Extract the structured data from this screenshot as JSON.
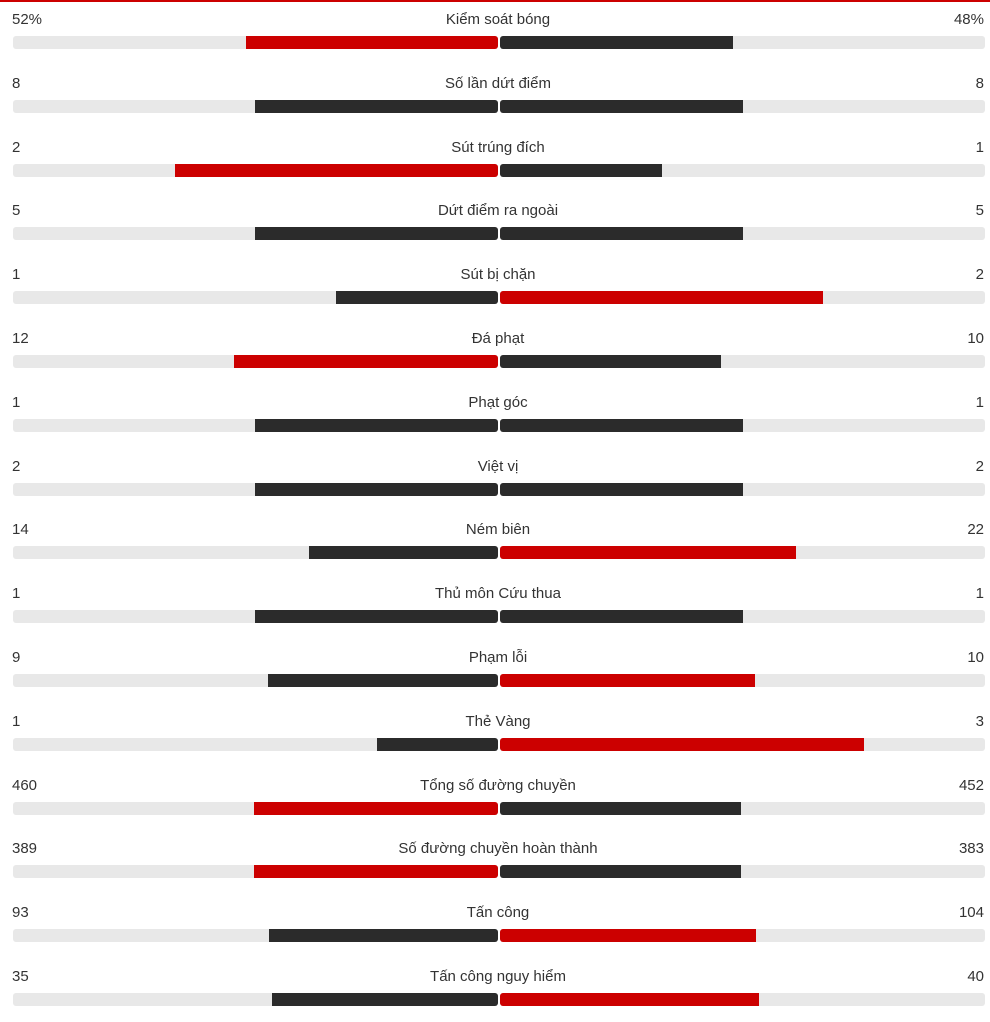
{
  "colors": {
    "winner": "#cc0000",
    "loser": "#2b2b2b",
    "track": "#e8e8e8",
    "accent_line": "#cc0000"
  },
  "stats": [
    {
      "label": "Kiểm soát bóng",
      "home_text": "52%",
      "away_text": "48%",
      "home_share": 0.52,
      "away_share": 0.48,
      "home_color": "winner",
      "away_color": "loser"
    },
    {
      "label": "Số lần dứt điểm",
      "home_text": "8",
      "away_text": "8",
      "home_share": 0.5,
      "away_share": 0.5,
      "home_color": "loser",
      "away_color": "loser"
    },
    {
      "label": "Sút trúng đích",
      "home_text": "2",
      "away_text": "1",
      "home_share": 0.667,
      "away_share": 0.333,
      "home_color": "winner",
      "away_color": "loser"
    },
    {
      "label": "Dứt điểm ra ngoài",
      "home_text": "5",
      "away_text": "5",
      "home_share": 0.5,
      "away_share": 0.5,
      "home_color": "loser",
      "away_color": "loser"
    },
    {
      "label": "Sút bị chặn",
      "home_text": "1",
      "away_text": "2",
      "home_share": 0.333,
      "away_share": 0.667,
      "home_color": "loser",
      "away_color": "winner"
    },
    {
      "label": "Đá phạt",
      "home_text": "12",
      "away_text": "10",
      "home_share": 0.545,
      "away_share": 0.455,
      "home_color": "winner",
      "away_color": "loser"
    },
    {
      "label": "Phạt góc",
      "home_text": "1",
      "away_text": "1",
      "home_share": 0.5,
      "away_share": 0.5,
      "home_color": "loser",
      "away_color": "loser"
    },
    {
      "label": "Việt vị",
      "home_text": "2",
      "away_text": "2",
      "home_share": 0.5,
      "away_share": 0.5,
      "home_color": "loser",
      "away_color": "loser"
    },
    {
      "label": "Ném biên",
      "home_text": "14",
      "away_text": "22",
      "home_share": 0.389,
      "away_share": 0.611,
      "home_color": "loser",
      "away_color": "winner"
    },
    {
      "label": "Thủ môn Cứu thua",
      "home_text": "1",
      "away_text": "1",
      "home_share": 0.5,
      "away_share": 0.5,
      "home_color": "loser",
      "away_color": "loser"
    },
    {
      "label": "Phạm lỗi",
      "home_text": "9",
      "away_text": "10",
      "home_share": 0.474,
      "away_share": 0.526,
      "home_color": "loser",
      "away_color": "winner"
    },
    {
      "label": "Thẻ Vàng",
      "home_text": "1",
      "away_text": "3",
      "home_share": 0.25,
      "away_share": 0.75,
      "home_color": "loser",
      "away_color": "winner"
    },
    {
      "label": "Tổng số đường chuyền",
      "home_text": "460",
      "away_text": "452",
      "home_share": 0.504,
      "away_share": 0.496,
      "home_color": "winner",
      "away_color": "loser"
    },
    {
      "label": "Số đường chuyền hoàn thành",
      "home_text": "389",
      "away_text": "383",
      "home_share": 0.504,
      "away_share": 0.496,
      "home_color": "winner",
      "away_color": "loser"
    },
    {
      "label": "Tấn công",
      "home_text": "93",
      "away_text": "104",
      "home_share": 0.472,
      "away_share": 0.528,
      "home_color": "loser",
      "away_color": "winner"
    },
    {
      "label": "Tấn công nguy hiểm",
      "home_text": "35",
      "away_text": "40",
      "home_share": 0.467,
      "away_share": 0.533,
      "home_color": "loser",
      "away_color": "winner"
    }
  ]
}
